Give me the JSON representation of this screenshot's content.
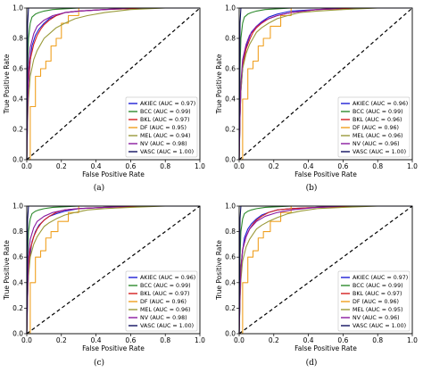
{
  "colors": {
    "AKIEC": "#1f1fd6",
    "BCC": "#2e8b2e",
    "BKL": "#d42020",
    "DF": "#f0a020",
    "MEL": "#9a9a3a",
    "NV": "#8a1aa0",
    "VASC": "#101060",
    "diag": "#000000"
  },
  "chart_data": [
    {
      "type": "line",
      "caption": "(a)",
      "xlabel": "False Positive Rate",
      "ylabel": "True Positive Rate",
      "xlim": [
        0,
        1
      ],
      "ylim": [
        0,
        1
      ],
      "ticks": [
        "0.0",
        "0.2",
        "0.4",
        "0.6",
        "0.8",
        "1.0"
      ],
      "legend_position": "lower-right",
      "series": [
        {
          "name": "AKIEC (AUC = 0.97)",
          "key": "AKIEC",
          "x": [
            0,
            0.005,
            0.01,
            0.02,
            0.03,
            0.05,
            0.07,
            0.1,
            0.13,
            0.17,
            0.22,
            0.3,
            0.45,
            0.7,
            1
          ],
          "y": [
            0,
            0.3,
            0.5,
            0.65,
            0.75,
            0.82,
            0.86,
            0.9,
            0.93,
            0.95,
            0.97,
            0.98,
            0.99,
            1,
            1
          ]
        },
        {
          "name": "BCC (AUC = 0.99)",
          "key": "BCC",
          "x": [
            0,
            0.005,
            0.01,
            0.02,
            0.03,
            0.05,
            0.07,
            0.1,
            0.15,
            0.3,
            0.6,
            1
          ],
          "y": [
            0,
            0.6,
            0.8,
            0.9,
            0.94,
            0.96,
            0.97,
            0.98,
            0.99,
            1,
            1,
            1
          ]
        },
        {
          "name": "BKL (AUC = 0.97)",
          "key": "BKL",
          "x": [
            0,
            0.005,
            0.01,
            0.02,
            0.04,
            0.06,
            0.08,
            0.1,
            0.13,
            0.17,
            0.22,
            0.3,
            0.45,
            0.7,
            1
          ],
          "y": [
            0,
            0.35,
            0.52,
            0.66,
            0.76,
            0.82,
            0.86,
            0.89,
            0.92,
            0.95,
            0.97,
            0.98,
            0.99,
            1,
            1
          ]
        },
        {
          "name": "DF (AUC = 0.95)",
          "key": "DF",
          "x": [
            0,
            0.02,
            0.02,
            0.05,
            0.05,
            0.08,
            0.08,
            0.11,
            0.11,
            0.14,
            0.14,
            0.17,
            0.17,
            0.2,
            0.2,
            0.24,
            0.24,
            0.3,
            0.3,
            0.5,
            1
          ],
          "y": [
            0,
            0,
            0.35,
            0.35,
            0.55,
            0.55,
            0.6,
            0.6,
            0.65,
            0.65,
            0.75,
            0.75,
            0.8,
            0.8,
            0.9,
            0.9,
            0.95,
            0.95,
            1,
            1,
            1
          ]
        },
        {
          "name": "MEL (AUC = 0.94)",
          "key": "MEL",
          "x": [
            0,
            0.005,
            0.01,
            0.02,
            0.04,
            0.06,
            0.08,
            0.1,
            0.13,
            0.17,
            0.22,
            0.28,
            0.35,
            0.45,
            0.6,
            0.8,
            1
          ],
          "y": [
            0,
            0.25,
            0.4,
            0.55,
            0.66,
            0.72,
            0.76,
            0.8,
            0.83,
            0.87,
            0.9,
            0.93,
            0.95,
            0.97,
            0.99,
            1,
            1
          ]
        },
        {
          "name": "NV (AUC = 0.98)",
          "key": "NV",
          "x": [
            0,
            0.005,
            0.01,
            0.02,
            0.04,
            0.06,
            0.1,
            0.15,
            0.22,
            0.3,
            0.45,
            0.6,
            1
          ],
          "y": [
            0,
            0.35,
            0.6,
            0.74,
            0.83,
            0.88,
            0.92,
            0.95,
            0.97,
            0.98,
            0.99,
            1,
            1
          ]
        },
        {
          "name": "VASC (AUC = 1.00)",
          "key": "VASC",
          "x": [
            0,
            0.005,
            0.01,
            1
          ],
          "y": [
            0,
            0.9,
            1,
            1
          ]
        }
      ]
    },
    {
      "type": "line",
      "caption": "(b)",
      "xlabel": "False Positive Rate",
      "ylabel": "True Positive Rate",
      "xlim": [
        0,
        1
      ],
      "ylim": [
        0,
        1
      ],
      "ticks": [
        "0.0",
        "0.2",
        "0.4",
        "0.6",
        "0.8",
        "1.0"
      ],
      "legend_position": "lower-right",
      "series": [
        {
          "name": "AKIEC (AUC = 0.96)",
          "key": "AKIEC",
          "x": [
            0,
            0.005,
            0.01,
            0.02,
            0.03,
            0.05,
            0.07,
            0.1,
            0.13,
            0.17,
            0.22,
            0.3,
            0.45,
            0.7,
            1
          ],
          "y": [
            0,
            0.28,
            0.45,
            0.6,
            0.7,
            0.78,
            0.84,
            0.88,
            0.91,
            0.94,
            0.96,
            0.98,
            0.99,
            1,
            1
          ]
        },
        {
          "name": "BCC (AUC = 0.99)",
          "key": "BCC",
          "x": [
            0,
            0.005,
            0.01,
            0.02,
            0.03,
            0.05,
            0.07,
            0.1,
            0.15,
            0.3,
            0.6,
            1
          ],
          "y": [
            0,
            0.6,
            0.8,
            0.9,
            0.94,
            0.96,
            0.97,
            0.98,
            0.99,
            1,
            1,
            1
          ]
        },
        {
          "name": "BKL (AUC = 0.96)",
          "key": "BKL",
          "x": [
            0,
            0.005,
            0.01,
            0.02,
            0.04,
            0.06,
            0.08,
            0.1,
            0.13,
            0.17,
            0.22,
            0.3,
            0.45,
            0.7,
            1
          ],
          "y": [
            0,
            0.3,
            0.48,
            0.62,
            0.73,
            0.79,
            0.84,
            0.87,
            0.9,
            0.93,
            0.95,
            0.97,
            0.99,
            1,
            1
          ]
        },
        {
          "name": "DF (AUC = 0.96)",
          "key": "DF",
          "x": [
            0,
            0.02,
            0.02,
            0.05,
            0.05,
            0.08,
            0.08,
            0.11,
            0.11,
            0.14,
            0.14,
            0.18,
            0.18,
            0.24,
            0.24,
            0.3,
            0.3,
            0.45,
            1
          ],
          "y": [
            0,
            0,
            0.4,
            0.4,
            0.6,
            0.6,
            0.65,
            0.65,
            0.75,
            0.75,
            0.8,
            0.8,
            0.88,
            0.88,
            0.95,
            0.95,
            1,
            1,
            1
          ]
        },
        {
          "name": "MEL (AUC = 0.96)",
          "key": "MEL",
          "x": [
            0,
            0.005,
            0.01,
            0.02,
            0.04,
            0.06,
            0.08,
            0.1,
            0.13,
            0.17,
            0.22,
            0.28,
            0.35,
            0.45,
            0.6,
            0.8,
            1
          ],
          "y": [
            0,
            0.28,
            0.45,
            0.6,
            0.7,
            0.76,
            0.8,
            0.84,
            0.87,
            0.9,
            0.93,
            0.95,
            0.97,
            0.98,
            0.99,
            1,
            1
          ]
        },
        {
          "name": "NV (AUC = 0.96)",
          "key": "NV",
          "x": [
            0,
            0.005,
            0.01,
            0.02,
            0.04,
            0.06,
            0.1,
            0.15,
            0.22,
            0.3,
            0.45,
            0.6,
            1
          ],
          "y": [
            0,
            0.3,
            0.5,
            0.66,
            0.76,
            0.82,
            0.88,
            0.92,
            0.95,
            0.97,
            0.99,
            1,
            1
          ]
        },
        {
          "name": "VASC (AUC = 1.00)",
          "key": "VASC",
          "x": [
            0,
            0.005,
            0.01,
            1
          ],
          "y": [
            0,
            0.9,
            1,
            1
          ]
        }
      ]
    },
    {
      "type": "line",
      "caption": "(c)",
      "xlabel": "False Positive Rate",
      "ylabel": "True Positive Rate",
      "xlim": [
        0,
        1
      ],
      "ylim": [
        0,
        1
      ],
      "ticks": [
        "0.0",
        "0.2",
        "0.4",
        "0.6",
        "0.8",
        "1.0"
      ],
      "legend_position": "lower-right",
      "series": [
        {
          "name": "AKIEC (AUC = 0.96)",
          "key": "AKIEC",
          "x": [
            0,
            0.005,
            0.01,
            0.02,
            0.03,
            0.05,
            0.07,
            0.1,
            0.13,
            0.17,
            0.22,
            0.3,
            0.45,
            0.7,
            1
          ],
          "y": [
            0,
            0.3,
            0.48,
            0.62,
            0.72,
            0.8,
            0.85,
            0.89,
            0.92,
            0.94,
            0.96,
            0.98,
            0.99,
            1,
            1
          ]
        },
        {
          "name": "BCC (AUC = 0.99)",
          "key": "BCC",
          "x": [
            0,
            0.005,
            0.01,
            0.02,
            0.03,
            0.05,
            0.07,
            0.1,
            0.15,
            0.3,
            0.6,
            1
          ],
          "y": [
            0,
            0.6,
            0.8,
            0.9,
            0.94,
            0.96,
            0.97,
            0.98,
            0.99,
            1,
            1,
            1
          ]
        },
        {
          "name": "BKL (AUC = 0.97)",
          "key": "BKL",
          "x": [
            0,
            0.005,
            0.01,
            0.02,
            0.04,
            0.06,
            0.08,
            0.1,
            0.13,
            0.17,
            0.22,
            0.3,
            0.45,
            0.7,
            1
          ],
          "y": [
            0,
            0.35,
            0.52,
            0.66,
            0.76,
            0.82,
            0.86,
            0.89,
            0.92,
            0.95,
            0.97,
            0.98,
            0.99,
            1,
            1
          ]
        },
        {
          "name": "DF (AUC = 0.96)",
          "key": "DF",
          "x": [
            0,
            0.02,
            0.02,
            0.05,
            0.05,
            0.08,
            0.08,
            0.11,
            0.11,
            0.14,
            0.14,
            0.18,
            0.18,
            0.24,
            0.24,
            0.3,
            0.3,
            0.45,
            1
          ],
          "y": [
            0,
            0,
            0.4,
            0.4,
            0.6,
            0.6,
            0.65,
            0.65,
            0.75,
            0.75,
            0.8,
            0.8,
            0.88,
            0.88,
            0.95,
            0.95,
            1,
            1,
            1
          ]
        },
        {
          "name": "MEL (AUC = 0.96)",
          "key": "MEL",
          "x": [
            0,
            0.005,
            0.01,
            0.02,
            0.04,
            0.06,
            0.08,
            0.1,
            0.13,
            0.17,
            0.22,
            0.28,
            0.35,
            0.45,
            0.6,
            0.8,
            1
          ],
          "y": [
            0,
            0.28,
            0.45,
            0.6,
            0.7,
            0.76,
            0.8,
            0.84,
            0.87,
            0.9,
            0.93,
            0.95,
            0.97,
            0.98,
            0.99,
            1,
            1
          ]
        },
        {
          "name": "NV (AUC = 0.98)",
          "key": "NV",
          "x": [
            0,
            0.005,
            0.01,
            0.02,
            0.04,
            0.06,
            0.1,
            0.15,
            0.22,
            0.3,
            0.45,
            0.6,
            1
          ],
          "y": [
            0,
            0.35,
            0.6,
            0.74,
            0.83,
            0.88,
            0.92,
            0.95,
            0.97,
            0.98,
            0.99,
            1,
            1
          ]
        },
        {
          "name": "VASC (AUC = 1.00)",
          "key": "VASC",
          "x": [
            0,
            0.005,
            0.01,
            1
          ],
          "y": [
            0,
            0.9,
            1,
            1
          ]
        }
      ]
    },
    {
      "type": "line",
      "caption": "(d)",
      "xlabel": "False Positive Rate",
      "ylabel": "True Positive Rate",
      "xlim": [
        0,
        1
      ],
      "ylim": [
        0,
        1
      ],
      "ticks": [
        "0.0",
        "0.2",
        "0.4",
        "0.6",
        "0.8",
        "1.0"
      ],
      "legend_position": "lower-right",
      "series": [
        {
          "name": "AKIEC (AUC = 0.97)",
          "key": "AKIEC",
          "x": [
            0,
            0.005,
            0.01,
            0.02,
            0.03,
            0.05,
            0.07,
            0.1,
            0.13,
            0.17,
            0.22,
            0.3,
            0.45,
            0.7,
            1
          ],
          "y": [
            0,
            0.3,
            0.5,
            0.65,
            0.75,
            0.82,
            0.86,
            0.9,
            0.93,
            0.95,
            0.97,
            0.98,
            0.99,
            1,
            1
          ]
        },
        {
          "name": "BCC (AUC = 0.99)",
          "key": "BCC",
          "x": [
            0,
            0.005,
            0.01,
            0.02,
            0.03,
            0.05,
            0.07,
            0.1,
            0.15,
            0.3,
            0.6,
            1
          ],
          "y": [
            0,
            0.6,
            0.8,
            0.9,
            0.94,
            0.96,
            0.97,
            0.98,
            0.99,
            1,
            1,
            1
          ]
        },
        {
          "name": "BKL (AUC = 0.97)",
          "key": "BKL",
          "x": [
            0,
            0.005,
            0.01,
            0.02,
            0.04,
            0.06,
            0.08,
            0.1,
            0.13,
            0.17,
            0.22,
            0.3,
            0.45,
            0.7,
            1
          ],
          "y": [
            0,
            0.35,
            0.52,
            0.66,
            0.76,
            0.82,
            0.86,
            0.89,
            0.92,
            0.95,
            0.97,
            0.98,
            0.99,
            1,
            1
          ]
        },
        {
          "name": "DF (AUC = 0.96)",
          "key": "DF",
          "x": [
            0,
            0.02,
            0.02,
            0.05,
            0.05,
            0.08,
            0.08,
            0.11,
            0.11,
            0.14,
            0.14,
            0.18,
            0.18,
            0.24,
            0.24,
            0.3,
            0.3,
            0.45,
            1
          ],
          "y": [
            0,
            0,
            0.4,
            0.4,
            0.6,
            0.6,
            0.65,
            0.65,
            0.75,
            0.75,
            0.8,
            0.8,
            0.88,
            0.88,
            0.95,
            0.95,
            1,
            1,
            1
          ]
        },
        {
          "name": "MEL (AUC = 0.95)",
          "key": "MEL",
          "x": [
            0,
            0.005,
            0.01,
            0.02,
            0.04,
            0.06,
            0.08,
            0.1,
            0.13,
            0.17,
            0.22,
            0.28,
            0.35,
            0.45,
            0.6,
            0.8,
            1
          ],
          "y": [
            0,
            0.26,
            0.42,
            0.57,
            0.68,
            0.74,
            0.78,
            0.82,
            0.85,
            0.88,
            0.91,
            0.94,
            0.96,
            0.98,
            0.99,
            1,
            1
          ]
        },
        {
          "name": "NV (AUC = 0.96)",
          "key": "NV",
          "x": [
            0,
            0.005,
            0.01,
            0.02,
            0.04,
            0.06,
            0.1,
            0.15,
            0.22,
            0.3,
            0.45,
            0.6,
            1
          ],
          "y": [
            0,
            0.3,
            0.5,
            0.66,
            0.76,
            0.82,
            0.88,
            0.92,
            0.95,
            0.97,
            0.99,
            1,
            1
          ]
        },
        {
          "name": "VASC (AUC = 1.00)",
          "key": "VASC",
          "x": [
            0,
            0.005,
            0.01,
            1
          ],
          "y": [
            0,
            0.9,
            1,
            1
          ]
        }
      ]
    }
  ]
}
